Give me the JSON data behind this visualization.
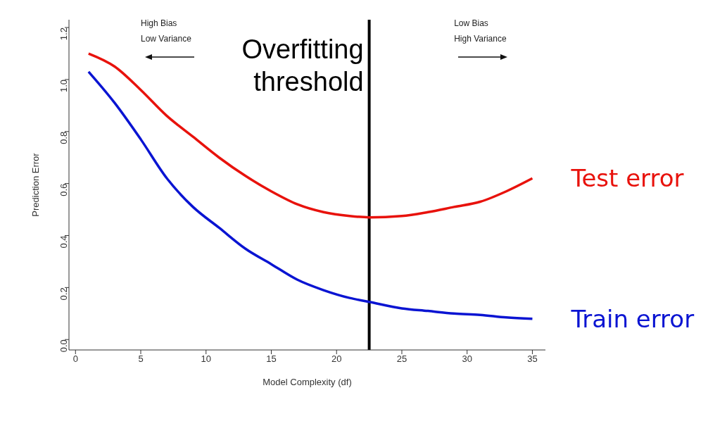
{
  "chart_data": {
    "type": "line",
    "xlabel": "Model Complexity (df)",
    "ylabel": "Prediction Error",
    "x": [
      1,
      3,
      5,
      7,
      9,
      11,
      13,
      15,
      17,
      19,
      21,
      22.5,
      25,
      27,
      29,
      31,
      33,
      35
    ],
    "series": [
      {
        "name": "Test error",
        "color": "#e8120c",
        "values": [
          1.1,
          1.05,
          0.96,
          0.86,
          0.78,
          0.7,
          0.63,
          0.57,
          0.52,
          0.49,
          0.475,
          0.47,
          0.475,
          0.49,
          0.51,
          0.53,
          0.57,
          0.62
        ]
      },
      {
        "name": "Train error",
        "color": "#0a14d2",
        "values": [
          1.03,
          0.91,
          0.77,
          0.62,
          0.51,
          0.43,
          0.35,
          0.29,
          0.23,
          0.19,
          0.16,
          0.145,
          0.12,
          0.11,
          0.1,
          0.095,
          0.085,
          0.08
        ]
      }
    ],
    "xlim": [
      -0.5,
      36
    ],
    "xticks": [
      0,
      5,
      10,
      15,
      20,
      25,
      30,
      35
    ],
    "ylim": [
      -0.04,
      1.23
    ],
    "yticks": [
      {
        "value": 0,
        "label": "0.0"
      },
      0.2,
      0.4,
      0.6,
      0.8,
      {
        "value": 1,
        "label": "1.0"
      },
      1.2
    ],
    "ref_lines": [
      {
        "axis": "x",
        "value": 22.5,
        "label": "Overfitting\nthreshold",
        "color": "#000000"
      }
    ],
    "annotations": [
      "High Bias\nLow Variance",
      "Low Bias\nHigh Variance"
    ]
  }
}
